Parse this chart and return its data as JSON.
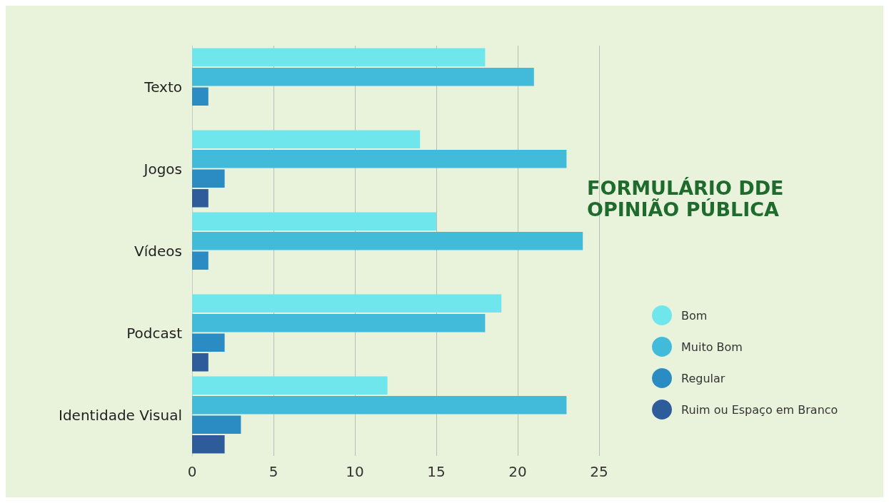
{
  "chart_data": {
    "type": "bar",
    "orientation": "horizontal",
    "title": "FORMULÁRIO DDE OPINIÃO PÚBLICA",
    "categories": [
      "Texto",
      "Jogos",
      "Vídeos",
      "Podcast",
      "Identidade Visual"
    ],
    "series": [
      {
        "name": "Bom",
        "color": "#6ee6ec",
        "values": [
          18,
          14,
          15,
          19,
          12
        ]
      },
      {
        "name": "Muito Bom",
        "color": "#42bbdb",
        "values": [
          21,
          23,
          24,
          18,
          23
        ]
      },
      {
        "name": "Regular",
        "color": "#2b8cc4",
        "values": [
          1,
          2,
          1,
          2,
          3
        ]
      },
      {
        "name": "Ruim ou Espaço em Branco",
        "color": "#2e5b9a",
        "values": [
          0,
          1,
          0,
          1,
          2
        ]
      }
    ],
    "xlim": [
      0,
      25
    ],
    "xticks": [
      0,
      5,
      10,
      15,
      20,
      25
    ],
    "grid": "x",
    "legend": "right"
  }
}
